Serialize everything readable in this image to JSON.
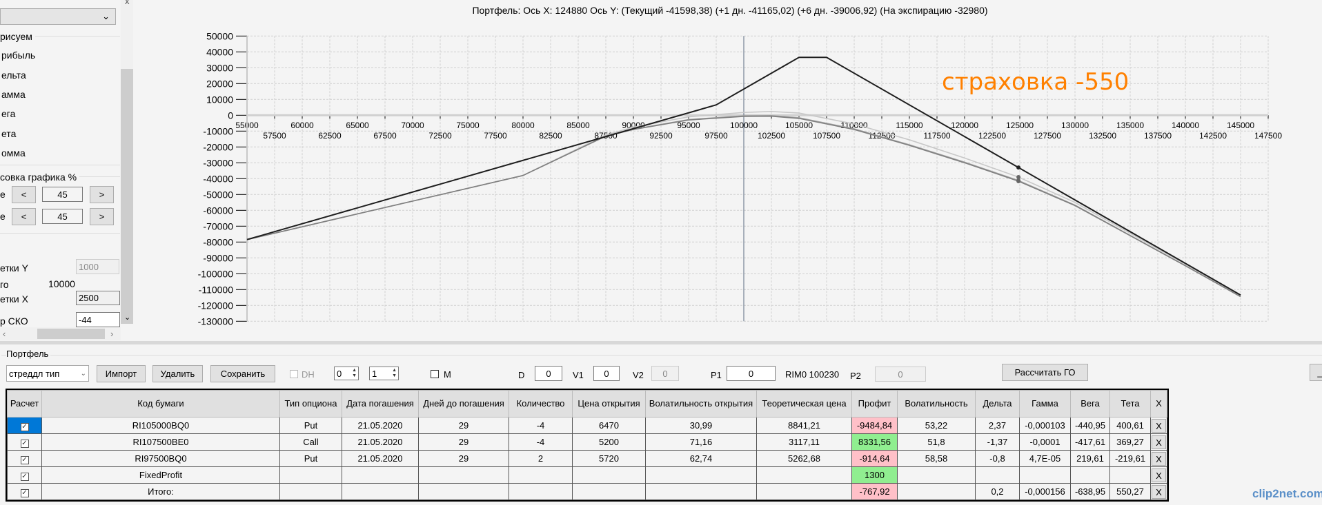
{
  "left_panel": {
    "group_draw": "рисуем",
    "items": [
      "рибыль",
      "ельта",
      "амма",
      "ега",
      "ета",
      "омма"
    ],
    "group_scale": "совка графика %",
    "row1_label": "е",
    "row1_value": "45",
    "row2_label": "е",
    "row2_value": "45",
    "prev_label": "<",
    "next_label": ">",
    "grid_y_label": "етки Y",
    "grid_y_value": "1000",
    "step_label": "го",
    "step_value": "10000",
    "grid_x_label": "етки X",
    "grid_x_value": "2500",
    "sko_label": "р СКО",
    "sko_value": "-44",
    "close_label": "x"
  },
  "chart_data": {
    "type": "line",
    "title": "Портфель: Ось X: 124880 Ось Y:  (Текущий -41598,38)  (+1 дн. -41165,02)  (+6 дн. -39006,92)  (На экспирацию -32980)",
    "annotation": "страховка -550",
    "annotation_color": "#ff8000",
    "xlim": [
      55000,
      147500
    ],
    "ylim": [
      -130000,
      50000
    ],
    "x_ticks": [
      55000,
      57500,
      60000,
      62500,
      65000,
      67500,
      70000,
      72500,
      75000,
      77500,
      80000,
      82500,
      85000,
      87500,
      90000,
      92500,
      95000,
      97500,
      100000,
      102500,
      105000,
      107500,
      110000,
      112500,
      115000,
      117500,
      120000,
      122500,
      125000,
      127500,
      130000,
      132500,
      135000,
      137500,
      140000,
      142500,
      145000,
      147500
    ],
    "y_ticks": [
      50000,
      40000,
      30000,
      20000,
      10000,
      0,
      -10000,
      -20000,
      -30000,
      -40000,
      -50000,
      -60000,
      -70000,
      -80000,
      -90000,
      -100000,
      -110000,
      -120000,
      -130000
    ],
    "grid": true,
    "cursor_x": 100000,
    "marker_x": 124880,
    "series": [
      {
        "name": "На экспирацию",
        "color": "#1e1e1e",
        "x": [
          55000,
          97500,
          105000,
          107500,
          145000
        ],
        "y": [
          -78460,
          6540,
          36540,
          36540,
          -113460
        ]
      },
      {
        "name": "Текущий",
        "color": "#808080",
        "x": [
          55000,
          80000,
          87500,
          90000,
          95000,
          100000,
          102500,
          105000,
          110000,
          115000,
          120000,
          124880,
          130000,
          135000,
          140000,
          145000
        ],
        "y": [
          -78460,
          -38000,
          -13200,
          -9000,
          -3000,
          -700,
          -600,
          -2000,
          -9000,
          -19000,
          -30000,
          -41598,
          -57000,
          -76000,
          -95000,
          -114500
        ]
      },
      {
        "name": "+1 дн.",
        "color": "#a0a0a0",
        "x": [
          55000,
          80000,
          87500,
          90000,
          95000,
          100000,
          102500,
          105000,
          110000,
          115000,
          120000,
          124880,
          130000,
          135000,
          140000,
          145000
        ],
        "y": [
          -78460,
          -38000,
          -13100,
          -8800,
          -2700,
          -300,
          -200,
          -1600,
          -8600,
          -18600,
          -29600,
          -41165,
          -56700,
          -75800,
          -94900,
          -114400
        ]
      },
      {
        "name": "+6 дн.",
        "color": "#c8c8c8",
        "x": [
          55000,
          80000,
          87500,
          90000,
          95000,
          100000,
          102500,
          105000,
          110000,
          115000,
          120000,
          124880,
          130000,
          135000,
          140000,
          145000
        ],
        "y": [
          -78460,
          -38000,
          -12500,
          -7500,
          -1000,
          1800,
          2400,
          1400,
          -5500,
          -15500,
          -27000,
          -39006,
          -55000,
          -74500,
          -94000,
          -114000
        ]
      }
    ],
    "marker_values": [
      -32980,
      -41598,
      -41165,
      -39006
    ]
  },
  "portfolio": {
    "group_label": "Портфель",
    "strategy_value": "стреддл тип",
    "import_label": "Импорт",
    "delete_label": "Удалить",
    "save_label": "Сохранить",
    "dh_label": "DH",
    "spin1": "0",
    "spin2": "1",
    "m_label": "M",
    "d_label": "D",
    "d_value": "0",
    "v1_label": "V1",
    "v1_value": "0",
    "v2_label": "V2",
    "v2_value": "0",
    "p1_label": "P1",
    "p1_value": "0",
    "rim_label": "RIM0 100230",
    "p2_label": "P2",
    "p2_value": "0",
    "calc_go_label": "Рассчитать ГО",
    "minimize_label": "_"
  },
  "table": {
    "headers": [
      "Расчет",
      "Код бумаги",
      "Тип опциона",
      "Дата погашения",
      "Дней до погашения",
      "Количество",
      "Цена открытия",
      "Волатильность открытия",
      "Теоретическая цена",
      "Профит",
      "Волатильность",
      "Дельта",
      "Гамма",
      "Вега",
      "Тета",
      "X"
    ],
    "rows": [
      [
        "RI105000BQ0",
        "Put",
        "21.05.2020",
        "29",
        "-4",
        "6470",
        "30,99",
        "8841,21",
        "-9484,84",
        "53,22",
        "2,37",
        "-0,000103",
        "-440,95",
        "400,61"
      ],
      [
        "RI107500BE0",
        "Call",
        "21.05.2020",
        "29",
        "-4",
        "5200",
        "71,16",
        "3117,11",
        "8331,56",
        "51,8",
        "-1,37",
        "-0,0001",
        "-417,61",
        "369,27"
      ],
      [
        "RI97500BQ0",
        "Put",
        "21.05.2020",
        "29",
        "2",
        "5720",
        "62,74",
        "5262,68",
        "-914,64",
        "58,58",
        "-0,8",
        "4,7E-05",
        "219,61",
        "-219,61"
      ],
      [
        "FixedProfit",
        "",
        "",
        "",
        "",
        "",
        "",
        "",
        "1300",
        "",
        "",
        "",
        "",
        ""
      ],
      [
        "Итого:",
        "",
        "",
        "",
        "",
        "",
        "",
        "",
        "-767,92",
        "",
        "0,2",
        "-0,000156",
        "-638,95",
        "550,27"
      ]
    ],
    "profit_status": [
      "negative",
      "positive",
      "negative",
      "positive",
      "negative"
    ],
    "delete_label": "X"
  },
  "watermark": "clip2net.com"
}
